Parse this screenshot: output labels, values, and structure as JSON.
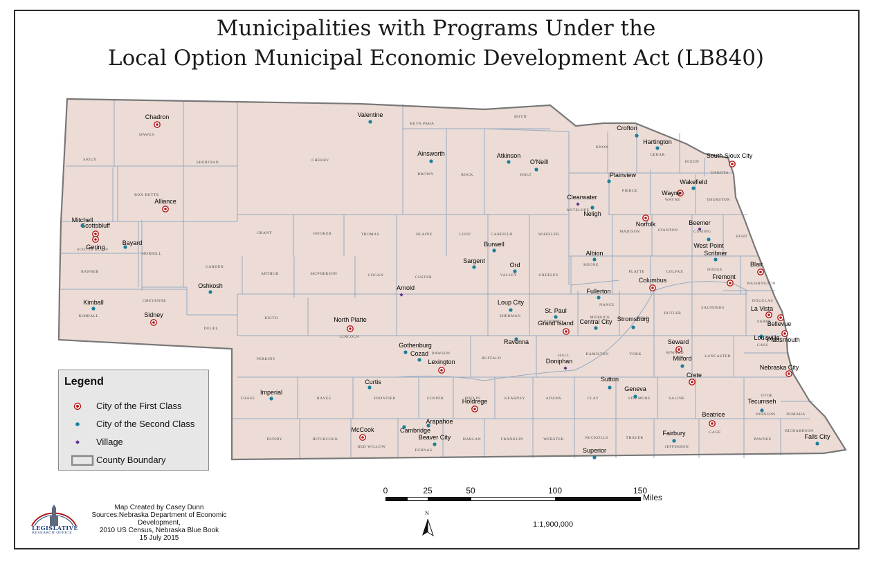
{
  "title": {
    "line1": "Municipalities with Programs Under the",
    "line2": "Local Option Municipal Economic Development Act (LB840)"
  },
  "colors": {
    "state_fill": "#ecdcd5",
    "county_line": "#96aac3",
    "state_outline": "#787878",
    "first_class": "#b01515",
    "second_class": "#1a7f9a",
    "village": "#5b3290"
  },
  "legend": {
    "title": "Legend",
    "items": [
      {
        "label": "City of the First Class",
        "symbol": "first"
      },
      {
        "label": "City of the Second Class",
        "symbol": "second"
      },
      {
        "label": "Village",
        "symbol": "village"
      },
      {
        "label": "County Boundary",
        "symbol": "boundary"
      }
    ]
  },
  "counties": [
    "SIOUX",
    "DAWES",
    "SHERIDAN",
    "CHERRY",
    "KEYA PAHA",
    "BOYD",
    "KNOX",
    "CEDAR",
    "DIXON",
    "DAKOTA",
    "BOX BUTTE",
    "BROWN",
    "ROCK",
    "HOLT",
    "ANTELOPE",
    "PIERCE",
    "WAYNE",
    "THURSTON",
    "SCOTTS BLUFF",
    "MORRILL",
    "GARDEN",
    "GRANT",
    "HOOKER",
    "THOMAS",
    "BLAINE",
    "LOUP",
    "GARFIELD",
    "WHEELER",
    "MADISON",
    "STANTON",
    "CUMING",
    "BURT",
    "BANNER",
    "ARTHUR",
    "MCPHERSON",
    "LOGAN",
    "CUSTER",
    "VALLEY",
    "GREELEY",
    "BOONE",
    "PLATTE",
    "COLFAX",
    "DODGE",
    "WASHINGTON",
    "KIMBALL",
    "CHEYENNE",
    "DEUEL",
    "KEITH",
    "LINCOLN",
    "SHERMAN",
    "HOWARD",
    "NANCE",
    "MERRICK",
    "POLK",
    "BUTLER",
    "SAUNDERS",
    "DOUGLAS",
    "SARPY",
    "PERKINS",
    "DAWSON",
    "BUFFALO",
    "HALL",
    "HAMILTON",
    "YORK",
    "SEWARD",
    "LANCASTER",
    "CASS",
    "CHASE",
    "HAYES",
    "FRONTIER",
    "GOSPER",
    "PHELPS",
    "KEARNEY",
    "ADAMS",
    "CLAY",
    "FILLMORE",
    "SALINE",
    "OTOE",
    "JOHNSON",
    "NEMAHA",
    "DUNDY",
    "HITCHCOCK",
    "RED WILLOW",
    "FURNAS",
    "HARLAN",
    "FRANKLIN",
    "WEBSTER",
    "NUCKOLLS",
    "THAYER",
    "JEFFERSON",
    "GAGE",
    "PAWNEE",
    "RICHARDSON"
  ],
  "cities": [
    {
      "name": "Chadron",
      "type": "first"
    },
    {
      "name": "Alliance",
      "type": "first"
    },
    {
      "name": "Scottsbluff",
      "type": "first"
    },
    {
      "name": "Gering",
      "type": "first"
    },
    {
      "name": "Sidney",
      "type": "first"
    },
    {
      "name": "North Platte",
      "type": "first"
    },
    {
      "name": "Lexington",
      "type": "first"
    },
    {
      "name": "Holdrege",
      "type": "first"
    },
    {
      "name": "McCook",
      "type": "first"
    },
    {
      "name": "Grand Island",
      "type": "first"
    },
    {
      "name": "Columbus",
      "type": "first"
    },
    {
      "name": "Norfolk",
      "type": "first"
    },
    {
      "name": "Wayne",
      "type": "first"
    },
    {
      "name": "South Sioux City",
      "type": "first"
    },
    {
      "name": "Blair",
      "type": "first"
    },
    {
      "name": "Fremont",
      "type": "first"
    },
    {
      "name": "La Vista",
      "type": "first"
    },
    {
      "name": "Bellevue",
      "type": "first"
    },
    {
      "name": "Plattsmouth",
      "type": "first"
    },
    {
      "name": "Nebraska City",
      "type": "first"
    },
    {
      "name": "Seward",
      "type": "first"
    },
    {
      "name": "Crete",
      "type": "first"
    },
    {
      "name": "Beatrice",
      "type": "first"
    },
    {
      "name": "Valentine",
      "type": "second"
    },
    {
      "name": "Mitchell",
      "type": "second"
    },
    {
      "name": "Bayard",
      "type": "second"
    },
    {
      "name": "Oshkosh",
      "type": "second"
    },
    {
      "name": "Kimball",
      "type": "second"
    },
    {
      "name": "Ainsworth",
      "type": "second"
    },
    {
      "name": "Atkinson",
      "type": "second"
    },
    {
      "name": "O'Neill",
      "type": "second"
    },
    {
      "name": "Crofton",
      "type": "second"
    },
    {
      "name": "Hartington",
      "type": "second"
    },
    {
      "name": "Plainview",
      "type": "second"
    },
    {
      "name": "Wakefield",
      "type": "second"
    },
    {
      "name": "Neligh",
      "type": "second"
    },
    {
      "name": "Burwell",
      "type": "second"
    },
    {
      "name": "Sargent",
      "type": "second"
    },
    {
      "name": "Ord",
      "type": "second"
    },
    {
      "name": "Albion",
      "type": "second"
    },
    {
      "name": "West Point",
      "type": "second"
    },
    {
      "name": "Scribner",
      "type": "second"
    },
    {
      "name": "Loup City",
      "type": "second"
    },
    {
      "name": "St. Paul",
      "type": "second"
    },
    {
      "name": "Fullerton",
      "type": "second"
    },
    {
      "name": "Central City",
      "type": "second"
    },
    {
      "name": "Stromsburg",
      "type": "second"
    },
    {
      "name": "Gothenburg",
      "type": "second"
    },
    {
      "name": "Cozad",
      "type": "second"
    },
    {
      "name": "Ravenna",
      "type": "second"
    },
    {
      "name": "Milford",
      "type": "second"
    },
    {
      "name": "Louisville",
      "type": "second"
    },
    {
      "name": "Curtis",
      "type": "second"
    },
    {
      "name": "Imperial",
      "type": "second"
    },
    {
      "name": "Sutton",
      "type": "second"
    },
    {
      "name": "Geneva",
      "type": "second"
    },
    {
      "name": "Arapahoe",
      "type": "second"
    },
    {
      "name": "Cambridge",
      "type": "second"
    },
    {
      "name": "Beaver City",
      "type": "second"
    },
    {
      "name": "Tecumseh",
      "type": "second"
    },
    {
      "name": "Fairbury",
      "type": "second"
    },
    {
      "name": "Superior",
      "type": "second"
    },
    {
      "name": "Falls City",
      "type": "second"
    },
    {
      "name": "Clearwater",
      "type": "village"
    },
    {
      "name": "Beemer",
      "type": "village"
    },
    {
      "name": "Arnold",
      "type": "village"
    },
    {
      "name": "Doniphan",
      "type": "village"
    }
  ],
  "credits": {
    "line1": "Map Created by Casey Dunn",
    "line2": "Sources:Nebraska Department of Economic Development,",
    "line3": "2010 US Census, Nebraska Blue Book",
    "line4": "15 July 2015"
  },
  "scale": {
    "ticks": [
      "0",
      "25",
      "50",
      "100",
      "150"
    ],
    "values_miles": [
      0,
      25,
      50,
      100,
      150
    ],
    "units": "Miles"
  },
  "ratio": "1:1,900,000",
  "north_label": "N",
  "logo": {
    "line1": "LEGISLATIVE",
    "line2": "RESEARCH OFFICE"
  }
}
